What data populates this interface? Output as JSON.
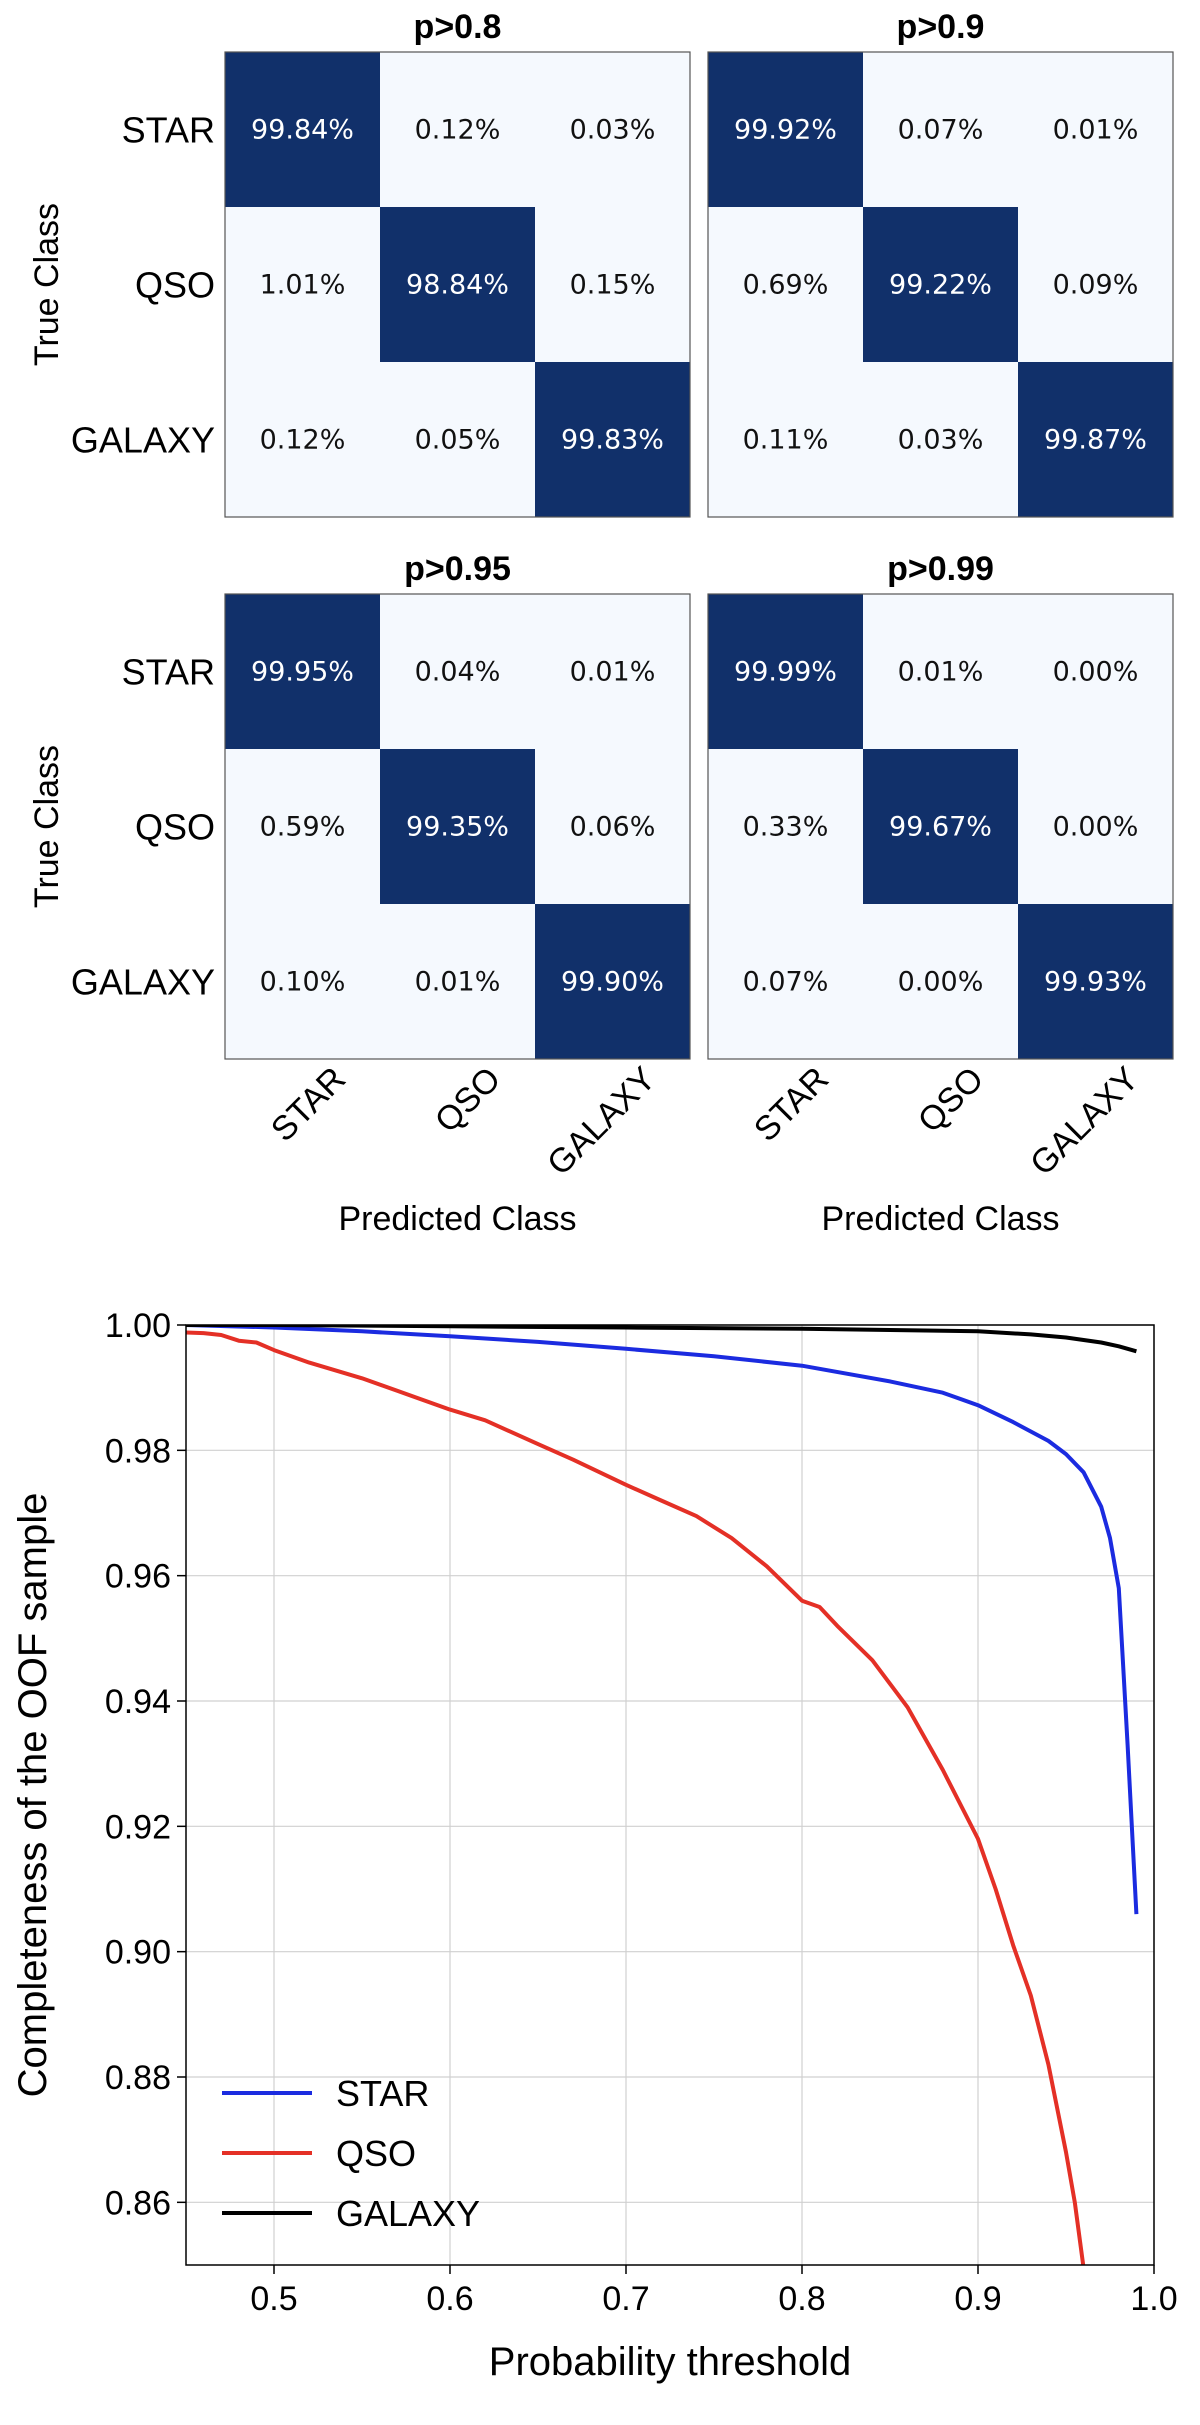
{
  "colors": {
    "diag": "#11306a",
    "off": "#f5f9fe",
    "frame": "#555555",
    "star": "#1b2be0",
    "qso": "#e43026",
    "galaxy": "#000000",
    "grid": "#d0d0d0"
  },
  "chart_data": [
    {
      "type": "heatmap",
      "title": "p>0.8",
      "rows": [
        "STAR",
        "QSO",
        "GALAXY"
      ],
      "cols": [
        "STAR",
        "QSO",
        "GALAXY"
      ],
      "ylabel": "True Class",
      "xlabel": "",
      "values": [
        [
          "99.84%",
          "0.12%",
          "0.03%"
        ],
        [
          "1.01%",
          "98.84%",
          "0.15%"
        ],
        [
          "0.12%",
          "0.05%",
          "99.83%"
        ]
      ]
    },
    {
      "type": "heatmap",
      "title": "p>0.9",
      "rows": [
        "STAR",
        "QSO",
        "GALAXY"
      ],
      "cols": [
        "STAR",
        "QSO",
        "GALAXY"
      ],
      "ylabel": "",
      "xlabel": "",
      "values": [
        [
          "99.92%",
          "0.07%",
          "0.01%"
        ],
        [
          "0.69%",
          "99.22%",
          "0.09%"
        ],
        [
          "0.11%",
          "0.03%",
          "99.87%"
        ]
      ]
    },
    {
      "type": "heatmap",
      "title": "p>0.95",
      "rows": [
        "STAR",
        "QSO",
        "GALAXY"
      ],
      "cols": [
        "STAR",
        "QSO",
        "GALAXY"
      ],
      "ylabel": "True Class",
      "xlabel": "Predicted Class",
      "values": [
        [
          "99.95%",
          "0.04%",
          "0.01%"
        ],
        [
          "0.59%",
          "99.35%",
          "0.06%"
        ],
        [
          "0.10%",
          "0.01%",
          "99.90%"
        ]
      ]
    },
    {
      "type": "heatmap",
      "title": "p>0.99",
      "rows": [
        "STAR",
        "QSO",
        "GALAXY"
      ],
      "cols": [
        "STAR",
        "QSO",
        "GALAXY"
      ],
      "ylabel": "",
      "xlabel": "Predicted Class",
      "values": [
        [
          "99.99%",
          "0.01%",
          "0.00%"
        ],
        [
          "0.33%",
          "99.67%",
          "0.00%"
        ],
        [
          "0.07%",
          "0.00%",
          "99.93%"
        ]
      ]
    },
    {
      "type": "line",
      "title": "",
      "xlabel": "Probability threshold",
      "ylabel": "Completeness of the OOF sample",
      "xlim": [
        0.45,
        1.0
      ],
      "ylim": [
        0.85,
        1.0
      ],
      "xticks": [
        "0.5",
        "0.6",
        "0.7",
        "0.8",
        "0.9",
        "1.0"
      ],
      "yticks": [
        "0.86",
        "0.88",
        "0.90",
        "0.92",
        "0.94",
        "0.96",
        "0.98",
        "1.00"
      ],
      "legend_position": "lower-left",
      "series": [
        {
          "name": "STAR",
          "x": [
            0.45,
            0.5,
            0.55,
            0.6,
            0.65,
            0.7,
            0.75,
            0.8,
            0.85,
            0.88,
            0.9,
            0.92,
            0.94,
            0.95,
            0.96,
            0.97,
            0.975,
            0.98,
            0.985,
            0.99
          ],
          "y": [
            1.0,
            0.9996,
            0.999,
            0.9982,
            0.9973,
            0.9962,
            0.995,
            0.9935,
            0.991,
            0.9892,
            0.9872,
            0.9845,
            0.9815,
            0.9794,
            0.9765,
            0.971,
            0.966,
            0.958,
            0.933,
            0.906
          ]
        },
        {
          "name": "QSO",
          "x": [
            0.45,
            0.46,
            0.47,
            0.48,
            0.49,
            0.5,
            0.52,
            0.55,
            0.57,
            0.6,
            0.62,
            0.65,
            0.67,
            0.7,
            0.72,
            0.74,
            0.76,
            0.78,
            0.8,
            0.81,
            0.82,
            0.84,
            0.86,
            0.88,
            0.9,
            0.91,
            0.92,
            0.93,
            0.94,
            0.95,
            0.955,
            0.96
          ],
          "y": [
            0.9988,
            0.9987,
            0.9984,
            0.9975,
            0.9972,
            0.996,
            0.994,
            0.9915,
            0.9895,
            0.9865,
            0.9848,
            0.981,
            0.9785,
            0.9745,
            0.972,
            0.9695,
            0.966,
            0.9615,
            0.956,
            0.955,
            0.952,
            0.9465,
            0.939,
            0.929,
            0.918,
            0.91,
            0.901,
            0.893,
            0.882,
            0.868,
            0.86,
            0.8495
          ]
        },
        {
          "name": "GALAXY",
          "x": [
            0.45,
            0.5,
            0.6,
            0.7,
            0.8,
            0.85,
            0.9,
            0.93,
            0.95,
            0.97,
            0.98,
            0.99
          ],
          "y": [
            1.0,
            1.0,
            0.9998,
            0.9996,
            0.9994,
            0.9992,
            0.999,
            0.9985,
            0.998,
            0.9972,
            0.9966,
            0.9958
          ]
        }
      ]
    }
  ]
}
